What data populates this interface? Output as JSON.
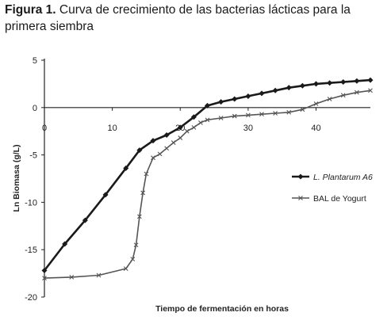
{
  "figure": {
    "label": "Figura 1.",
    "text": "Curva de crecimiento de las bacterias lácticas para la primera siembra"
  },
  "chart_data": {
    "type": "line",
    "title": "",
    "xlabel": "Tiempo de fermentación en horas",
    "ylabel": "Ln Biomasa (g/L)",
    "xlim": [
      0,
      48
    ],
    "ylim": [
      -20,
      5
    ],
    "x_ticks": [
      0,
      10,
      20,
      30,
      40
    ],
    "y_ticks": [
      5,
      0,
      -5,
      -10,
      -15,
      -20
    ],
    "grid": false,
    "legend_position": "right",
    "series": [
      {
        "name": "L. Plantarum A6",
        "color": "#1a1a1a",
        "marker": "diamond",
        "x": [
          0,
          3,
          6,
          9,
          12,
          14,
          16,
          18,
          20,
          22,
          24,
          26,
          28,
          30,
          32,
          34,
          36,
          38,
          40,
          42,
          44,
          46,
          48
        ],
        "y": [
          -17.2,
          -14.4,
          -11.9,
          -9.2,
          -6.4,
          -4.5,
          -3.5,
          -2.9,
          -2.1,
          -1.0,
          0.2,
          0.6,
          0.9,
          1.2,
          1.5,
          1.8,
          2.1,
          2.3,
          2.5,
          2.6,
          2.7,
          2.8,
          2.9
        ]
      },
      {
        "name": "BAL de Yogurt",
        "color": "#555555",
        "marker": "x",
        "x": [
          0,
          4,
          8,
          12,
          13,
          13.5,
          14,
          14.5,
          15,
          16,
          17,
          18,
          19,
          20,
          21,
          22,
          23,
          24,
          26,
          28,
          30,
          32,
          34,
          36,
          38,
          40,
          42,
          44,
          46,
          48
        ],
        "y": [
          -18.0,
          -17.9,
          -17.7,
          -17.0,
          -16.0,
          -14.5,
          -11.5,
          -9.0,
          -7.0,
          -5.3,
          -4.9,
          -4.3,
          -3.7,
          -3.2,
          -2.5,
          -2.1,
          -1.6,
          -1.3,
          -1.1,
          -0.9,
          -0.8,
          -0.7,
          -0.6,
          -0.5,
          -0.2,
          0.4,
          0.9,
          1.3,
          1.6,
          1.8
        ]
      }
    ]
  }
}
